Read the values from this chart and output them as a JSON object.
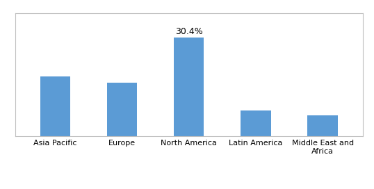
{
  "categories": [
    "Asia Pacific",
    "Europe",
    "North America",
    "Latin America",
    "Middle East and\nAfrica"
  ],
  "values": [
    18.5,
    16.5,
    30.4,
    8.0,
    6.5
  ],
  "bar_color": "#5b9bd5",
  "annotate_index": 2,
  "annotate_label": "30.4%",
  "ylim": [
    0,
    38
  ],
  "background_color": "#ffffff",
  "bar_width": 0.45,
  "tick_fontsize": 8.0,
  "annotation_fontsize": 9.0,
  "source_fontsize": 7.5,
  "border_color": "#c0c0c0"
}
